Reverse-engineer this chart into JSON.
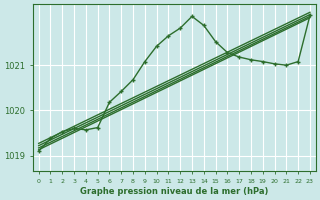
{
  "title": "Graphe pression niveau de la mer (hPa)",
  "background_color": "#cce8e8",
  "plot_bg_color": "#cce8e8",
  "grid_color": "#ffffff",
  "line_color": "#2d6e2d",
  "xlim": [
    -0.5,
    23.5
  ],
  "ylim": [
    1018.65,
    1022.35
  ],
  "yticks": [
    1019,
    1020,
    1021
  ],
  "xtick_labels": [
    "0",
    "1",
    "2",
    "3",
    "4",
    "5",
    "6",
    "7",
    "8",
    "9",
    "10",
    "11",
    "12",
    "13",
    "14",
    "15",
    "16",
    "17",
    "18",
    "19",
    "20",
    "21",
    "22",
    "23"
  ],
  "straight_lines": [
    {
      "x0": 0,
      "y0": 1019.13,
      "x1": 23,
      "y1": 1022.05
    },
    {
      "x0": 0,
      "y0": 1019.17,
      "x1": 23,
      "y1": 1022.08
    },
    {
      "x0": 0,
      "y0": 1019.22,
      "x1": 23,
      "y1": 1022.12
    },
    {
      "x0": 0,
      "y0": 1019.27,
      "x1": 23,
      "y1": 1022.17
    }
  ],
  "main_x": [
    0,
    1,
    2,
    3,
    4,
    5,
    6,
    7,
    8,
    9,
    10,
    11,
    12,
    13,
    14,
    15,
    16,
    17,
    18,
    19,
    20,
    21,
    22,
    23
  ],
  "main_y": [
    1019.1,
    1019.38,
    1019.53,
    1019.6,
    1019.57,
    1019.62,
    1020.18,
    1020.42,
    1020.68,
    1021.08,
    1021.42,
    1021.65,
    1021.82,
    1022.08,
    1021.88,
    1021.52,
    1021.28,
    1021.18,
    1021.12,
    1021.08,
    1021.03,
    1021.0,
    1021.08,
    1022.1
  ]
}
